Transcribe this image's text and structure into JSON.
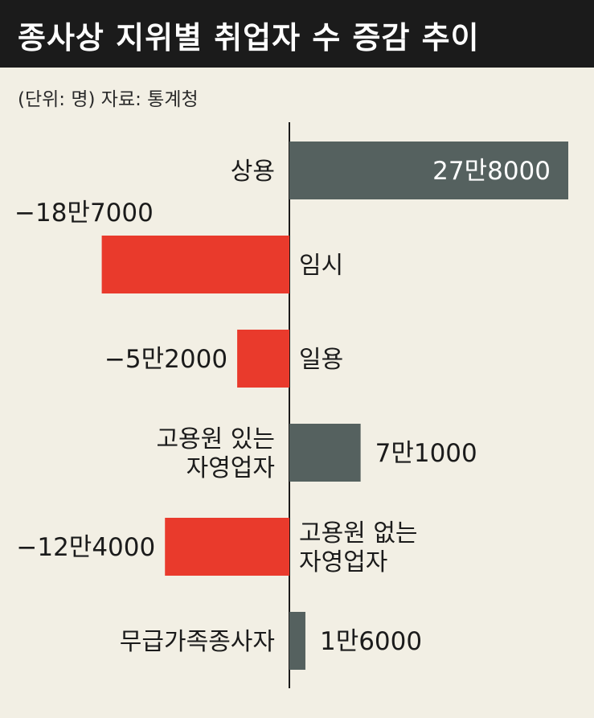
{
  "header": {
    "title": "종사상 지위별 취업자 수 증감 추이",
    "unit_source": "(단위: 명)  자료: 통계청"
  },
  "colors": {
    "positive": "#55615f",
    "negative": "#e93a2c",
    "background": "#f2efe4",
    "title_bar": "#1b1b1b"
  },
  "chart_data": {
    "type": "bar",
    "orientation": "horizontal",
    "title": "종사상 지위별 취업자 수 증감 추이",
    "unit": "명",
    "source": "통계청",
    "categories": [
      [
        "상용"
      ],
      [
        "임시"
      ],
      [
        "일용"
      ],
      [
        "고용원 있는",
        "자영업자"
      ],
      [
        "고용원 없는",
        "자영업자"
      ],
      [
        "무급가족종사자"
      ]
    ],
    "values": [
      278000,
      -187000,
      -52000,
      71000,
      -124000,
      16000
    ],
    "value_labels": [
      "27만8000",
      "−18만7000",
      "−5만2000",
      "7만1000",
      "−12만4000",
      "1만6000"
    ],
    "grid": false,
    "legend": "none"
  }
}
